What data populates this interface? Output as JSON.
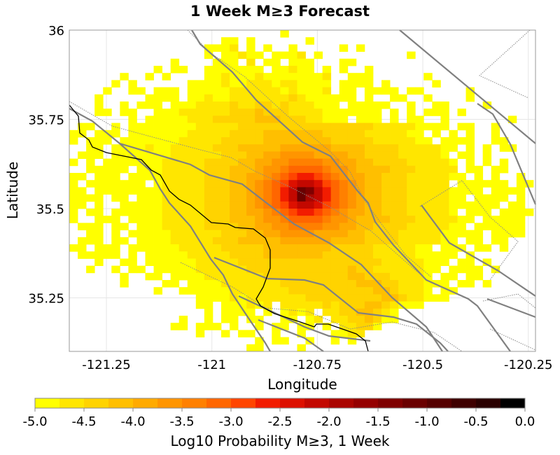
{
  "chart_data": {
    "type": "heatmap",
    "title": "1 Week M≥3 Forecast",
    "xlabel": "Longitude",
    "ylabel": "Latitude",
    "xlim": [
      -121.338,
      -120.233
    ],
    "ylim": [
      35.1,
      36.0
    ],
    "cell_size_deg": 0.02,
    "grid_origin": {
      "lon": -121.338,
      "lat_top": 36.0
    },
    "xticks": [
      -121.25,
      -121,
      -120.75,
      -120.5,
      -120.25
    ],
    "xtick_labels": [
      "-121.25",
      "-121",
      "-120.75",
      "-120.5",
      "-120.25"
    ],
    "yticks": [
      36,
      35.75,
      35.5,
      35.25
    ],
    "ytick_labels": [
      "36",
      "35.75",
      "35.5",
      "35.25"
    ],
    "grid_lines": true,
    "colorbar": {
      "label": "Log10 Probability M≥3, 1 Week",
      "range": [
        -5.0,
        0.0
      ],
      "bin_width": 0.25,
      "tick_labels": [
        "-5.0",
        "-4.5",
        "-4.0",
        "-3.5",
        "-3.0",
        "-2.5",
        "-2.0",
        "-1.5",
        "-1.0",
        "-0.5",
        "0.0"
      ],
      "colors": [
        "#ffff00",
        "#ffe600",
        "#ffd300",
        "#ffbf00",
        "#ffaa00",
        "#ff9500",
        "#ff8000",
        "#ff6600",
        "#ff4500",
        "#f21c00",
        "#dd1000",
        "#c30800",
        "#aa0500",
        "#950000",
        "#7f0000",
        "#6a0000",
        "#550000",
        "#3f0000",
        "#2a0000",
        "#000000"
      ],
      "placement": "bottom"
    },
    "grid_encoding": "one character per 0.02° cell, west to east; rows north to south; '.' = no value; 'a'..'t' = colorbar bin 0..19",
    "rows": [
      ".........................a.............................",
      "..................aa.a......a..........................",
      "................aaab.a.a..a.....a.a....................",
      "................a.aabaa.aaab.a..........a..............",
      "............a....aaa.b.aa.aaa...aa.....................",
      "..........a.aa..aaaaaaa.aabaa.a.a..a...................",
      "......a..a.a....aabaaabaaaaaaab..aaa......a............",
      ".....a.a......aaaabaabbbabbaaaa.aaaa.a.....a...........",
      "....a..aa.aaa.aaaaabbbbbbabaaab.aa.aaaa.aa.....a.......",
      "...a.....aaaa.aabaabbbbbbbcbaaaaaa.a..aa..a....a.......",
      "...a..a.aaa.aaabbbbcbbccbcbbbaaa.aaaaa..a..aa....a.....",
      "...aa.aa..aaabbbbbbcccdcccbbbbaaaaaaa.a.a.aaa.a........",
      ".......a.aaaaabbbcccccdddcccbbaaa.aaa.a.aa..a.......a..",
      ".aa..a.aaaaaaaabbbbbccccccccccccccccbbbbbaaaa.aa..a....",
      "aa.aaa.aaaaaaabbbbbccccdddddddcccccbbbbbaa.a.a.a..a....",
      "a.aaa.aaaaaaabbbbbcccccddddddddcccccbbbbbaa.aaaa..aa...",
      "..aa.aaaabaabbbbbcccdddddeeeeeeddddccccbbbbbaa.a.a.aa..",
      ".aaa.aaaaaaabbbbbbcccddeeffffeeeeddccccbbbbba.aa.a.....",
      "a.a.aaaaaaabbbbbccccddeeffggggffeeddccccbbbbba.a.a.a...",
      "..aaaaa.aaabbbbbcccdddeffghhhhgffeddddcccbbbbb.aa.aa...",
      "aa.aaa.aaaabbbbbcccddeefghijjihgfeeddcccbbbbbaa.a.a..a.",
      "a.aaaaaaa.abbbbbcccddefghikllkihgfeddcccbbbbb.aaaaaa.aa",
      "aa.aaaaaaaabbbbbcccddefghjlpoljhgfeddcccbbbbbaaaa.aaaa.",
      "aaaa.aa.aaabbbbbcccddefghjlpmljhgfeddcccbbbbbaa.aaaa.a.",
      "aa.a..aaaaabbbbbcccddefghikllkihgfeddcccbbbbbaaaaaa.aa.",
      "a.aa.aaaaaabbbbbcccddeefghijjihgfeeddcccbbbbba.aaa.aaaa",
      "a..aaa.aaaabbbbbcccdddeffghhhhgffeddddcccbbbbbaa.aaaaa.",
      ".aaa.aa.aaabbbbbccccddeeffggggffeeddccccbbbbbaa.aaaaaa.",
      "..aa.a.aaaaabbbbbbcccddeeffffeeeeddccccbbbbbaaaaa.aaaa.",
      ".aaa.aa.aaaabbbbbcccdddddeeeeeeddddccccbbbbbaa.aa.aa...",
      "aa.aaa.aaaaaabbbbbcccccddddddddcccccbbbbbaa.aaa.aa.a...",
      ".aaaaa.a.aaaaabbbbbccccdddddddccccccbbbbbaaaaa.a.......",
      "...a..aa.aaaaaabbbbbcccccccccccccccccbbbbbaaa.aa.a.....",
      "..a..a.aa.aaaaabbbbbbccccccccccccdccbbbbbbaa.aaaa.a....",
      "......a..aa.aaaabbbbbbbccccccccccddcccbbbba.aa.aa......",
      "......a....aa.aaaabbbbbbbcccccccccdddccbbbaaa.aa.a.....",
      "..........a..aaaaaabbbbbbbccccccccccddcbbba.aa.........",
      "...............aaaababbbbbbbcccccccccddcbbaaa..........",
      "...............aa.aaabab.bbbbbcbcccddcbaaa.............",
      "................a.aaaa.a.abab.bbccddcba................",
      ".............a..a.aa.aa..aa.ab.bbccdcaa................",
      "............aa.aaa.a..a.aa.aa.a.bbcca..................",
      "...............a..a.aa..a..a...aabb....................",
      "......................a.aa..a..a.a.....................",
      ".....................aa....a..........................."
    ]
  }
}
